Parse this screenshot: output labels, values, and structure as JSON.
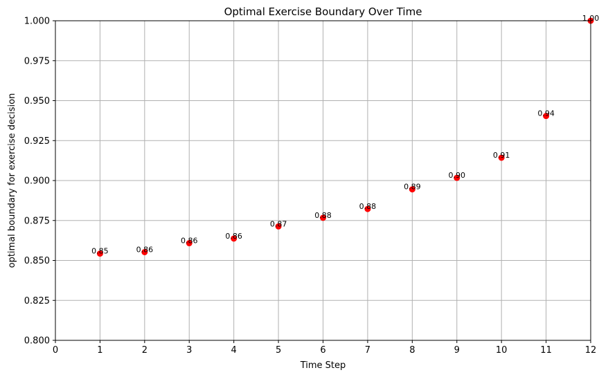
{
  "chart_data": {
    "type": "scatter",
    "title": "Optimal Exercise Boundary Over Time",
    "xlabel": "Time Step",
    "ylabel": "optimal boundary for exercise decision",
    "xlim": [
      0,
      12
    ],
    "ylim": [
      0.8,
      1.0
    ],
    "xticks": [
      0,
      1,
      2,
      3,
      4,
      5,
      6,
      7,
      8,
      9,
      10,
      11,
      12
    ],
    "yticks": [
      0.8,
      0.825,
      0.85,
      0.875,
      0.9,
      0.925,
      0.95,
      0.975,
      1.0
    ],
    "ytick_labels": [
      "0.800",
      "0.825",
      "0.850",
      "0.875",
      "0.900",
      "0.925",
      "0.950",
      "0.975",
      "1.000"
    ],
    "grid": true,
    "marker_color": "#ff0000",
    "grid_color": "#b0b0b0",
    "points": [
      {
        "x": 1,
        "y": 0.8543,
        "label": "0.85"
      },
      {
        "x": 2,
        "y": 0.8552,
        "label": "0.86"
      },
      {
        "x": 3,
        "y": 0.8608,
        "label": "0.86"
      },
      {
        "x": 4,
        "y": 0.8637,
        "label": "0.86"
      },
      {
        "x": 5,
        "y": 0.8713,
        "label": "0.87"
      },
      {
        "x": 6,
        "y": 0.8767,
        "label": "0.88"
      },
      {
        "x": 7,
        "y": 0.8822,
        "label": "0.88"
      },
      {
        "x": 8,
        "y": 0.8945,
        "label": "0.89"
      },
      {
        "x": 9,
        "y": 0.9017,
        "label": "0.90"
      },
      {
        "x": 10,
        "y": 0.9143,
        "label": "0.91"
      },
      {
        "x": 11,
        "y": 0.9404,
        "label": "0.94"
      },
      {
        "x": 12,
        "y": 1.0,
        "label": "1.00"
      }
    ]
  }
}
